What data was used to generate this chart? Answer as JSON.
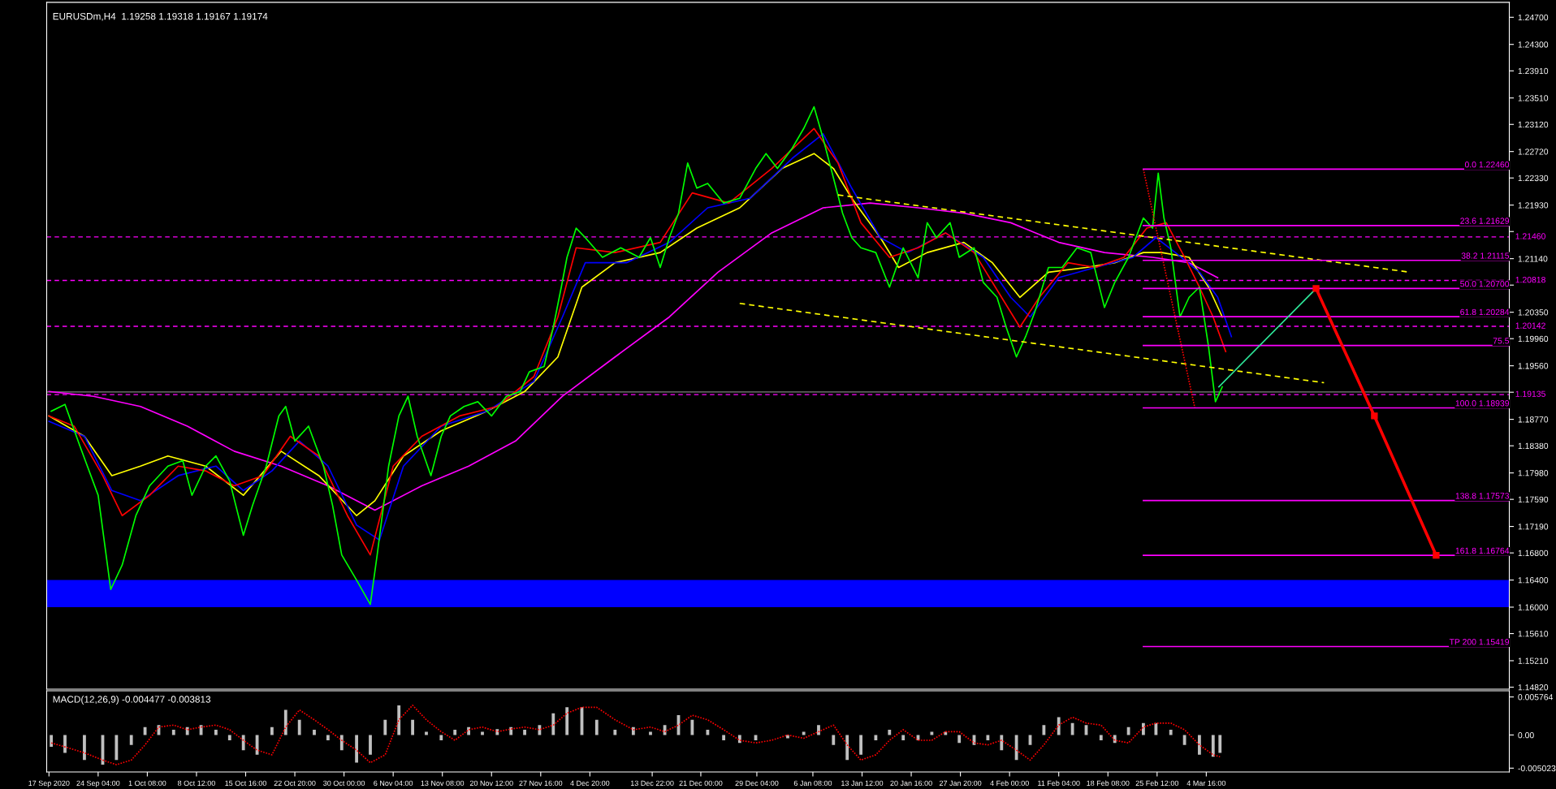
{
  "chart_data": [
    {
      "type": "line",
      "title": "EURUSDm,H4  1.19258 1.19318 1.19167 1.19174",
      "xlim": [
        "2020-09-16T16:00",
        "2021-04-17T20:00"
      ],
      "ylim": [
        1.1479,
        1.2492
      ],
      "yticks": [
        {
          "value": 1.247,
          "label": "1.24700"
        },
        {
          "value": 1.243,
          "label": "1.24300"
        },
        {
          "value": 1.2391,
          "label": "1.23910"
        },
        {
          "value": 1.2351,
          "label": "1.23510"
        },
        {
          "value": 1.2312,
          "label": "1.23120"
        },
        {
          "value": 1.2272,
          "label": "1.22720"
        },
        {
          "value": 1.2233,
          "label": "1.22330"
        },
        {
          "value": 1.2193,
          "label": "1.21930"
        },
        {
          "value": 1.2154,
          "label": null
        },
        {
          "value": 1.2114,
          "label": "1.21140"
        },
        {
          "value": 1.2075,
          "label": null
        },
        {
          "value": 1.2035,
          "label": "1.20350"
        },
        {
          "value": 1.1996,
          "label": "1.19960"
        },
        {
          "value": 1.1956,
          "label": "1.19560"
        },
        {
          "value": 1.1917,
          "label": null
        },
        {
          "value": 1.1877,
          "label": "1.18770"
        },
        {
          "value": 1.1838,
          "label": "1.18380"
        },
        {
          "value": 1.1798,
          "label": "1.17980"
        },
        {
          "value": 1.1759,
          "label": "1.17590"
        },
        {
          "value": 1.1719,
          "label": "1.17190"
        },
        {
          "value": 1.168,
          "label": "1.16800"
        },
        {
          "value": 1.164,
          "label": "1.16400"
        },
        {
          "value": 1.16,
          "label": "1.16000"
        },
        {
          "value": 1.1561,
          "label": "1.15610"
        },
        {
          "value": 1.1521,
          "label": "1.15210"
        },
        {
          "value": 1.1482,
          "label": "1.14820"
        }
      ],
      "tick_labels": "y",
      "grid": false,
      "legend": false,
      "bands": [
        {
          "axis": "y",
          "from": 1.16,
          "to": 1.164,
          "color": "#0000ff"
        }
      ],
      "ref_lines": [
        {
          "axis": "y",
          "value": 1.2146,
          "label": "1.21460",
          "color": "#ff00ff",
          "line_style": "dashed"
        },
        {
          "axis": "y",
          "value": 1.20818,
          "label": "1.20818",
          "color": "#ff00ff",
          "line_style": "dashed"
        },
        {
          "axis": "y",
          "value": 1.20142,
          "label": "1.20142",
          "color": "#ff00ff",
          "line_style": "dashed"
        },
        {
          "axis": "y",
          "value": 1.19135,
          "label": "1.19135",
          "color": "#ff00ff",
          "line_style": "dashed"
        },
        {
          "axis": "y",
          "value": 1.19174,
          "color": "#808080",
          "line_style": "solid"
        }
      ],
      "series": [
        {
          "color": "#ff00ff",
          "x": [
            "2020-09-17T00:00",
            "2020-09-23T12:00",
            "2020-09-30T08:00",
            "2020-10-07T04:00",
            "2020-10-14T00:00",
            "2020-10-20T20:00",
            "2020-10-27T16:00",
            "2020-11-03T12:00",
            "2020-11-10T08:00",
            "2020-11-17T04:00",
            "2020-11-24T00:00",
            "2020-11-30T20:00",
            "2020-12-08T12:00",
            "2020-12-16T10:00",
            "2020-12-23T12:00",
            "2020-12-31T08:00",
            "2021-01-07T20:00",
            "2021-01-14T16:00",
            "2021-01-21T16:00",
            "2021-01-28T08:00",
            "2021-02-04T04:00",
            "2021-02-11T04:00",
            "2021-02-17T20:00",
            "2021-02-24T20:00",
            "2021-03-02T04:00",
            "2021-03-06T08:00"
          ],
          "values": [
            1.1918,
            1.1911,
            1.1896,
            1.1867,
            1.183,
            1.1808,
            1.1779,
            1.1743,
            1.1779,
            1.1808,
            1.1845,
            1.1911,
            1.1969,
            1.2028,
            1.2094,
            1.2152,
            1.2189,
            1.2196,
            1.2189,
            1.2181,
            1.2167,
            1.2138,
            1.2123,
            1.2116,
            1.2108,
            1.2086
          ]
        },
        {
          "color": "#ffff00",
          "x": [
            "2020-09-17T00:00",
            "2020-09-22T04:00",
            "2020-09-26T04:00",
            "2020-09-30T08:00",
            "2020-10-04T08:00",
            "2020-10-09T20:00",
            "2020-10-15T08:00",
            "2020-10-20T20:00",
            "2020-10-26T08:00",
            "2020-10-31T20:00",
            "2020-11-03T12:00",
            "2020-11-07T16:00",
            "2020-11-13T04:00",
            "2020-11-19T20:00",
            "2020-11-25T08:00",
            "2020-11-30T04:00",
            "2020-12-03T16:00",
            "2020-12-08T12:00",
            "2020-12-15T02:00",
            "2020-12-20T10:00",
            "2020-12-26T16:00",
            "2021-01-01T20:00",
            "2021-01-06T12:00",
            "2021-01-09T08:00",
            "2021-01-12T00:00",
            "2021-01-16T04:00",
            "2021-01-18T20:00",
            "2021-01-23T00:00",
            "2021-01-28T08:00",
            "2021-02-01T12:00",
            "2021-02-05T12:00",
            "2021-02-09T16:00",
            "2021-02-15T04:00",
            "2021-02-19T08:00",
            "2021-02-23T12:00",
            "2021-02-26T04:00",
            "2021-03-02T04:00",
            "2021-03-05T00:00",
            "2021-03-07T00:00"
          ],
          "values": [
            1.1882,
            1.1852,
            1.1794,
            1.1808,
            1.1823,
            1.1808,
            1.1765,
            1.183,
            1.1794,
            1.1735,
            1.1757,
            1.1823,
            1.186,
            1.1889,
            1.1918,
            1.1969,
            1.2072,
            1.2108,
            1.2123,
            1.2159,
            1.2189,
            1.2247,
            1.2269,
            1.2247,
            1.2203,
            1.2145,
            1.2101,
            1.2123,
            1.2138,
            1.2108,
            1.2057,
            1.2094,
            1.2101,
            1.2108,
            1.2123,
            1.2123,
            1.2116,
            1.2072,
            1.2028
          ]
        },
        {
          "color": "#0000ff",
          "x": [
            "2020-09-17T00:00",
            "2020-09-22T04:00",
            "2020-09-26T04:00",
            "2020-09-30T08:00",
            "2020-10-05T20:00",
            "2020-10-11T08:00",
            "2020-10-15T08:00",
            "2020-10-19T12:00",
            "2020-10-23T12:00",
            "2020-10-27T16:00",
            "2020-10-31T20:00",
            "2020-11-04T04:00",
            "2020-11-07T16:00",
            "2020-11-13T04:00",
            "2020-11-19T20:00",
            "2020-11-26T16:00",
            "2020-11-30T20:00",
            "2020-12-04T04:00",
            "2020-12-10T04:00",
            "2020-12-16T10:00",
            "2020-12-22T00:00",
            "2020-12-28T04:00",
            "2021-01-03T08:00",
            "2021-01-07T20:00",
            "2021-01-12T00:00",
            "2021-01-16T04:00",
            "2021-01-20T04:00",
            "2021-01-25T16:00",
            "2021-01-31T04:00",
            "2021-02-04T04:00",
            "2021-02-07T00:00",
            "2021-02-11T04:00",
            "2021-02-16T12:00",
            "2021-02-22T00:00",
            "2021-02-25T08:00",
            "2021-02-28T04:00",
            "2021-03-03T16:00",
            "2021-03-06T08:00",
            "2021-03-08T08:00"
          ],
          "values": [
            1.1874,
            1.1852,
            1.1772,
            1.1757,
            1.1794,
            1.1808,
            1.1772,
            1.1801,
            1.1845,
            1.1808,
            1.1721,
            1.1699,
            1.1808,
            1.1867,
            1.1889,
            1.1933,
            1.2028,
            1.2108,
            1.2108,
            1.2138,
            1.2189,
            1.2203,
            1.2262,
            1.2298,
            1.2218,
            1.2145,
            1.2123,
            1.2152,
            1.2116,
            1.2057,
            1.2028,
            1.2086,
            1.2101,
            1.2116,
            1.2145,
            1.2123,
            1.2094,
            1.2057,
            1.1999
          ]
        },
        {
          "color": "#ff0000",
          "x": [
            "2020-09-17T00:00",
            "2020-09-20T16:00",
            "2020-09-24T20:00",
            "2020-09-27T16:00",
            "2020-10-01T16:00",
            "2020-10-05T20:00",
            "2020-10-09T20:00",
            "2020-10-14T00:00",
            "2020-10-18T04:00",
            "2020-10-22T04:00",
            "2020-10-26T08:00",
            "2020-10-30T12:00",
            "2020-11-02T20:00",
            "2020-11-06T04:00",
            "2020-11-10T08:00",
            "2020-11-15T20:00",
            "2020-11-21T08:00",
            "2020-11-26T16:00",
            "2020-11-30T04:00",
            "2020-12-02T20:00",
            "2020-12-08T12:00",
            "2020-12-15T02:00",
            "2020-12-19T18:00",
            "2020-12-25T02:00",
            "2020-12-31T08:00",
            "2021-01-06T12:00",
            "2021-01-10T00:00",
            "2021-01-13T08:00",
            "2021-01-17T12:00",
            "2021-01-21T16:00",
            "2021-01-25T16:00",
            "2021-01-29T20:00",
            "2021-02-02T20:00",
            "2021-02-05T12:00",
            "2021-02-08T08:00",
            "2021-02-12T12:00",
            "2021-02-16T12:00",
            "2021-02-20T16:00",
            "2021-02-24T00:00",
            "2021-02-26T20:00",
            "2021-03-01T12:00",
            "2021-03-03T16:00",
            "2021-03-05T16:00",
            "2021-03-07T12:00"
          ],
          "values": [
            1.1882,
            1.1867,
            1.1794,
            1.1735,
            1.1765,
            1.1808,
            1.1801,
            1.1779,
            1.1794,
            1.1852,
            1.1823,
            1.1735,
            1.1677,
            1.1808,
            1.1852,
            1.1882,
            1.1896,
            1.194,
            1.2028,
            1.213,
            1.2123,
            1.2138,
            1.2211,
            1.2196,
            1.2247,
            1.2306,
            1.2255,
            1.2167,
            1.2116,
            1.213,
            1.2152,
            1.2123,
            1.2057,
            1.2013,
            1.2057,
            1.2108,
            1.2101,
            1.2116,
            1.2159,
            1.2167,
            1.2116,
            1.2072,
            1.2028,
            1.1977
          ]
        },
        {
          "color": "#00ff00",
          "x": [
            "2020-09-17T08:00",
            "2020-09-19T08:00",
            "2020-09-21T12:00",
            "2020-09-24T04:00",
            "2020-09-26T00:00",
            "2020-09-27T16:00",
            "2020-09-29T16:00",
            "2020-10-01T16:00",
            "2020-10-04T08:00",
            "2020-10-06T12:00",
            "2020-10-07T20:00",
            "2020-10-09T20:00",
            "2020-10-11T08:00",
            "2020-10-13T08:00",
            "2020-10-15T08:00",
            "2020-10-16T16:00",
            "2020-10-18T16:00",
            "2020-10-20T12:00",
            "2020-10-21T12:00",
            "2020-10-22T20:00",
            "2020-10-24T20:00",
            "2020-10-27T00:00",
            "2020-10-28T08:00",
            "2020-10-29T16:00",
            "2020-10-31T20:00",
            "2020-11-02T20:00",
            "2020-11-03T20:00",
            "2020-11-05T12:00",
            "2020-11-07T00:00",
            "2020-11-08T08:00",
            "2020-11-09T16:00",
            "2020-11-11T16:00",
            "2020-11-13T04:00",
            "2020-11-14T12:00",
            "2020-11-16T12:00",
            "2020-11-18T12:00",
            "2020-11-20T12:00",
            "2020-11-22T16:00",
            "2020-11-24T16:00",
            "2020-11-26T00:00",
            "2020-11-28T04:00",
            "2020-11-29T12:00",
            "2020-11-30T16:00",
            "2020-12-01T12:00",
            "2020-12-02T20:00",
            "2020-12-04T04:00",
            "2020-12-06T16:00",
            "2020-12-09T08:00",
            "2020-12-12T00:00",
            "2020-12-13T16:00",
            "2020-12-15T02:00",
            "2020-12-16T10:00",
            "2020-12-17T18:00",
            "2020-12-19T02:00",
            "2020-12-20T10:00",
            "2020-12-22T00:00",
            "2020-12-24T08:00",
            "2020-12-26T16:00",
            "2020-12-29T00:00",
            "2020-12-30T12:00",
            "2021-01-01T04:00",
            "2021-01-03T08:00",
            "2021-01-05T00:00",
            "2021-01-06T12:00",
            "2021-01-07T20:00",
            "2021-01-09T08:00",
            "2021-01-10T16:00",
            "2021-01-12T00:00",
            "2021-01-13T08:00",
            "2021-01-15T12:00",
            "2021-01-17T12:00",
            "2021-01-19T12:00",
            "2021-01-21T16:00",
            "2021-01-23T00:00",
            "2021-01-24T08:00",
            "2021-01-26T08:00",
            "2021-01-27T16:00",
            "2021-01-29T20:00",
            "2021-01-31T04:00",
            "2021-02-02T04:00",
            "2021-02-03T12:00",
            "2021-02-05T00:00",
            "2021-02-06T08:00",
            "2021-02-07T16:00",
            "2021-02-09T16:00",
            "2021-02-11T16:00",
            "2021-02-13T20:00",
            "2021-02-15T20:00",
            "2021-02-17T20:00",
            "2021-02-19T08:00",
            "2021-02-21T08:00",
            "2021-02-23T12:00",
            "2021-02-24T20:00",
            "2021-02-25T16:00",
            "2021-02-26T12:00",
            "2021-02-27T12:00",
            "2021-02-28T20:00",
            "2021-03-02T04:00",
            "2021-03-03T16:00",
            "2021-03-05T00:00",
            "2021-03-06T00:00",
            "2021-03-07T00:00"
          ],
          "values": [
            1.1889,
            1.1899,
            1.1838,
            1.1765,
            1.1626,
            1.1662,
            1.1735,
            1.1779,
            1.1808,
            1.1816,
            1.1765,
            1.1808,
            1.1823,
            1.1786,
            1.1706,
            1.175,
            1.1808,
            1.1882,
            1.1896,
            1.1845,
            1.1867,
            1.1808,
            1.175,
            1.1677,
            1.164,
            1.1604,
            1.1677,
            1.1808,
            1.1882,
            1.1911,
            1.1852,
            1.1794,
            1.1852,
            1.1882,
            1.1896,
            1.1903,
            1.1882,
            1.1911,
            1.1918,
            1.1947,
            1.1955,
            1.2013,
            1.2072,
            1.2116,
            1.2159,
            1.2145,
            1.2116,
            1.213,
            1.2116,
            1.2145,
            1.2101,
            1.2145,
            1.2181,
            1.2255,
            1.2218,
            1.2225,
            1.2196,
            1.2203,
            1.2247,
            1.2269,
            1.2247,
            1.2277,
            1.2306,
            1.2338,
            1.2291,
            1.2233,
            1.2181,
            1.2145,
            1.213,
            1.2123,
            1.2072,
            1.213,
            1.2086,
            1.2167,
            1.2145,
            1.2167,
            1.2116,
            1.213,
            1.2079,
            1.2057,
            1.2013,
            1.1969,
            1.1999,
            1.2035,
            1.2101,
            1.2101,
            1.213,
            1.2123,
            1.2042,
            1.2079,
            1.2116,
            1.2174,
            1.2159,
            1.224,
            1.2174,
            1.213,
            1.2028,
            1.2057,
            1.2072,
            1.1984,
            1.1903,
            1.1925
          ]
        },
        {
          "color": "#ffff00",
          "line_style": "dashed",
          "x": [
            "2021-01-10T00:00",
            "2021-04-03T08:00"
          ],
          "values": [
            1.2208,
            1.2094
          ]
        },
        {
          "color": "#ffff00",
          "line_style": "dashed",
          "x": [
            "2020-12-26T16:00",
            "2021-03-21T20:00"
          ],
          "values": [
            1.2048,
            1.1931
          ]
        },
        {
          "color": "#ff0000",
          "line_style": "dotted",
          "x": [
            "2021-02-23T12:00",
            "2021-02-27T04:00",
            "2021-03-03T00:00"
          ],
          "values": [
            1.2246,
            1.2073,
            1.1894
          ]
        },
        {
          "name": "0.0 1.22460",
          "color": "#ff00ff",
          "x": [
            "2021-02-23T12:00",
            "2021-04-17T20:00"
          ],
          "values": [
            1.2246,
            1.2246
          ]
        },
        {
          "name": "23.6 1.21629",
          "color": "#ff00ff",
          "x": [
            "2021-02-23T12:00",
            "2021-04-17T20:00"
          ],
          "values": [
            1.21629,
            1.21629
          ]
        },
        {
          "name": "38.2 1.21115",
          "color": "#ff00ff",
          "x": [
            "2021-02-23T12:00",
            "2021-04-17T20:00"
          ],
          "values": [
            1.21115,
            1.21115
          ]
        },
        {
          "name": "50.0 1.20700",
          "color": "#ff00ff",
          "x": [
            "2021-02-23T12:00",
            "2021-04-17T20:00"
          ],
          "values": [
            1.207,
            1.207
          ]
        },
        {
          "name": "61.8 1.20284",
          "color": "#ff00ff",
          "x": [
            "2021-02-23T12:00",
            "2021-04-17T20:00"
          ],
          "values": [
            1.20284,
            1.20284
          ]
        },
        {
          "name": "75.5",
          "color": "#ff00ff",
          "x": [
            "2021-02-23T12:00",
            "2021-04-17T20:00"
          ],
          "values": [
            1.1986,
            1.1986
          ]
        },
        {
          "name": "100.0 1.18939",
          "color": "#ff00ff",
          "x": [
            "2021-02-23T12:00",
            "2021-04-17T20:00"
          ],
          "values": [
            1.18939,
            1.18939
          ]
        },
        {
          "name": "138.8 1.17573",
          "color": "#ff00ff",
          "x": [
            "2021-02-23T12:00",
            "2021-04-17T20:00"
          ],
          "values": [
            1.17573,
            1.17573
          ]
        },
        {
          "name": "161.8 1.16764",
          "color": "#ff00ff",
          "x": [
            "2021-02-23T12:00",
            "2021-04-17T20:00"
          ],
          "values": [
            1.16764,
            1.16764
          ]
        },
        {
          "name": "TP 200 1.15419",
          "color": "#ff00ff",
          "x": [
            "2021-02-23T12:00",
            "2021-04-17T20:00"
          ],
          "values": [
            1.15419,
            1.15419
          ]
        },
        {
          "color": "#2ee89a",
          "x": [
            "2021-03-06T12:00",
            "2021-03-20T16:00"
          ],
          "values": [
            1.1925,
            1.207
          ]
        },
        {
          "color": "#ff0000",
          "marker": "square",
          "x": [
            "2021-03-20T16:00",
            "2021-03-29T04:00",
            "2021-04-07T04:00"
          ],
          "values": [
            1.207,
            1.1882,
            1.16764
          ]
        }
      ]
    },
    {
      "type": "bar",
      "title": "MACD(12,26,9) -0.004477 -0.003813",
      "xlim": [
        "2020-09-16T16:00",
        "2021-04-17T20:00"
      ],
      "xticks": [
        {
          "value": "2020-09-17T00:00",
          "label": "17 Sep 2020"
        },
        {
          "value": "2020-09-24T04:00",
          "label": "24 Sep 04:00"
        },
        {
          "value": "2020-10-01T08:00",
          "label": "1 Oct 08:00"
        },
        {
          "value": "2020-10-08T12:00",
          "label": "8 Oct 12:00"
        },
        {
          "value": "2020-10-15T16:00",
          "label": "15 Oct 16:00"
        },
        {
          "value": "2020-10-22T20:00",
          "label": "22 Oct 20:00"
        },
        {
          "value": "2020-10-30T00:00",
          "label": "30 Oct 00:00"
        },
        {
          "value": "2020-11-06T04:00",
          "label": "6 Nov 04:00"
        },
        {
          "value": "2020-11-13T08:00",
          "label": "13 Nov 08:00"
        },
        {
          "value": "2020-11-20T12:00",
          "label": "20 Nov 12:00"
        },
        {
          "value": "2020-11-27T16:00",
          "label": "27 Nov 16:00"
        },
        {
          "value": "2020-12-04T20:00",
          "label": "4 Dec 20:00"
        },
        {
          "value": "2020-12-13T22:00",
          "label": "13 Dec 22:00"
        },
        {
          "value": "2020-12-21T00:00",
          "label": "21 Dec 00:00"
        },
        {
          "value": "2020-12-29T04:00",
          "label": "29 Dec 04:00"
        },
        {
          "value": "2021-01-06T08:00",
          "label": "6 Jan 08:00"
        },
        {
          "value": "2021-01-13T12:00",
          "label": "13 Jan 12:00"
        },
        {
          "value": "2021-01-20T16:00",
          "label": "20 Jan 16:00"
        },
        {
          "value": "2021-01-27T20:00",
          "label": "27 Jan 20:00"
        },
        {
          "value": "2021-02-04T00:00",
          "label": "4 Feb 00:00"
        },
        {
          "value": "2021-02-11T04:00",
          "label": "11 Feb 04:00"
        },
        {
          "value": "2021-02-18T08:00",
          "label": "18 Feb 08:00"
        },
        {
          "value": "2021-02-25T12:00",
          "label": "25 Feb 12:00"
        },
        {
          "value": "2021-03-04T16:00",
          "label": "4 Mar 16:00"
        }
      ],
      "ylim": [
        -0.0056,
        0.0067
      ],
      "yticks": [
        {
          "value": 0.005764,
          "label": "0.005764"
        },
        {
          "value": 0,
          "label": "0.00"
        },
        {
          "value": -0.005023,
          "label": "-0.005023"
        }
      ],
      "grid": false,
      "legend": false,
      "series": [
        {
          "color": "#c0c0c0",
          "x": [
            "2020-09-17T08:00",
            "2020-09-19T08:00",
            "2020-09-22T04:00",
            "2020-09-24T20:00",
            "2020-09-26T20:00",
            "2020-09-29T00:00",
            "2020-10-01T00:00",
            "2020-10-03T00:00",
            "2020-10-05T04:00",
            "2020-10-07T04:00",
            "2020-10-09T04:00",
            "2020-10-11T08:00",
            "2020-10-13T08:00",
            "2020-10-15T08:00",
            "2020-10-17T08:00",
            "2020-10-19T12:00",
            "2020-10-21T12:00",
            "2020-10-23T12:00",
            "2020-10-25T16:00",
            "2020-10-27T16:00",
            "2020-10-29T16:00",
            "2020-10-31T20:00",
            "2020-11-02T20:00",
            "2020-11-05T00:00",
            "2020-11-07T00:00",
            "2020-11-09T00:00",
            "2020-11-11T00:00",
            "2020-11-13T04:00",
            "2020-11-15T04:00",
            "2020-11-17T04:00",
            "2020-11-19T04:00",
            "2020-11-21T08:00",
            "2020-11-23T08:00",
            "2020-11-25T08:00",
            "2020-11-27T12:00",
            "2020-11-29T12:00",
            "2020-12-01T12:00",
            "2020-12-03T16:00",
            "2020-12-05T20:00",
            "2020-12-08T12:00",
            "2020-12-11T04:00",
            "2020-12-13T16:00",
            "2020-12-15T18:00",
            "2020-12-17T18:00",
            "2020-12-19T18:00",
            "2020-12-22T00:00",
            "2020-12-24T08:00",
            "2020-12-26T16:00",
            "2020-12-29T00:00",
            "2020-12-31T08:00",
            "2021-01-02T16:00",
            "2021-01-05T00:00",
            "2021-01-07T04:00",
            "2021-01-09T08:00",
            "2021-01-11T08:00",
            "2021-01-13T08:00",
            "2021-01-15T12:00",
            "2021-01-17T12:00",
            "2021-01-19T12:00",
            "2021-01-21T16:00",
            "2021-01-23T16:00",
            "2021-01-25T16:00",
            "2021-01-27T16:00",
            "2021-01-29T20:00",
            "2021-01-31T20:00",
            "2021-02-02T20:00",
            "2021-02-05T00:00",
            "2021-02-07T00:00",
            "2021-02-09T00:00",
            "2021-02-11T04:00",
            "2021-02-13T04:00",
            "2021-02-15T04:00",
            "2021-02-17T08:00",
            "2021-02-19T08:00",
            "2021-02-21T08:00",
            "2021-02-23T12:00",
            "2021-02-25T08:00",
            "2021-02-27T12:00",
            "2021-03-01T12:00",
            "2021-03-03T16:00",
            "2021-03-05T16:00",
            "2021-03-06T16:00"
          ],
          "values": [
            -0.0018,
            -0.0027,
            -0.0038,
            -0.0045,
            -0.0038,
            -0.0015,
            0.0012,
            0.0015,
            0.0008,
            0.0012,
            0.0015,
            0.0008,
            -0.0008,
            -0.0023,
            -0.003,
            0.0012,
            0.0038,
            0.0023,
            0.0008,
            -0.0008,
            -0.0023,
            -0.0042,
            -0.003,
            0.0023,
            0.0045,
            0.0023,
            0.0005,
            -0.0008,
            0.0008,
            0.0012,
            0.0005,
            0.0009,
            0.0012,
            0.0008,
            0.0015,
            0.0033,
            0.0042,
            0.0042,
            0.0023,
            0.0008,
            0.0012,
            0.0005,
            0.0015,
            0.003,
            0.0023,
            0.0008,
            -0.0008,
            -0.0012,
            -0.0008,
            0.0,
            -0.0005,
            0.0005,
            0.0015,
            -0.0015,
            -0.0038,
            -0.003,
            -0.0008,
            0.0008,
            -0.0008,
            -0.0008,
            0.0005,
            0.0005,
            -0.0012,
            -0.0015,
            -0.0008,
            -0.0023,
            -0.0038,
            -0.0015,
            0.0015,
            0.0027,
            0.0018,
            0.0015,
            -0.0008,
            -0.0012,
            0.0012,
            0.0018,
            0.0018,
            0.0008,
            -0.0015,
            -0.003,
            -0.0033,
            -0.0027
          ]
        },
        {
          "type": "line",
          "color": "#ff0000",
          "line_style": "dotted",
          "x": [
            "2020-09-17T08:00",
            "2020-09-19T08:00",
            "2020-09-22T04:00",
            "2020-09-24T20:00",
            "2020-09-26T20:00",
            "2020-09-29T00:00",
            "2020-10-01T00:00",
            "2020-10-03T00:00",
            "2020-10-05T04:00",
            "2020-10-07T04:00",
            "2020-10-09T04:00",
            "2020-10-11T08:00",
            "2020-10-13T08:00",
            "2020-10-15T08:00",
            "2020-10-17T08:00",
            "2020-10-19T12:00",
            "2020-10-21T12:00",
            "2020-10-23T12:00",
            "2020-10-25T16:00",
            "2020-10-27T16:00",
            "2020-10-29T16:00",
            "2020-10-31T20:00",
            "2020-11-02T20:00",
            "2020-11-05T00:00",
            "2020-11-07T00:00",
            "2020-11-09T00:00",
            "2020-11-11T00:00",
            "2020-11-13T04:00",
            "2020-11-15T04:00",
            "2020-11-17T04:00",
            "2020-11-19T04:00",
            "2020-11-21T08:00",
            "2020-11-23T08:00",
            "2020-11-25T08:00",
            "2020-11-27T12:00",
            "2020-11-29T12:00",
            "2020-12-01T12:00",
            "2020-12-03T16:00",
            "2020-12-05T20:00",
            "2020-12-08T12:00",
            "2020-12-11T04:00",
            "2020-12-13T16:00",
            "2020-12-15T18:00",
            "2020-12-17T18:00",
            "2020-12-19T18:00",
            "2020-12-22T00:00",
            "2020-12-24T08:00",
            "2020-12-26T16:00",
            "2020-12-29T00:00",
            "2020-12-31T08:00",
            "2021-01-02T16:00",
            "2021-01-05T00:00",
            "2021-01-07T04:00",
            "2021-01-09T08:00",
            "2021-01-11T08:00",
            "2021-01-13T08:00",
            "2021-01-15T12:00",
            "2021-01-17T12:00",
            "2021-01-19T12:00",
            "2021-01-21T16:00",
            "2021-01-23T16:00",
            "2021-01-25T16:00",
            "2021-01-27T16:00",
            "2021-01-29T20:00",
            "2021-01-31T20:00",
            "2021-02-02T20:00",
            "2021-02-05T00:00",
            "2021-02-07T00:00",
            "2021-02-09T00:00",
            "2021-02-11T04:00",
            "2021-02-13T04:00",
            "2021-02-15T04:00",
            "2021-02-17T08:00",
            "2021-02-19T08:00",
            "2021-02-21T08:00",
            "2021-02-23T12:00",
            "2021-02-25T08:00",
            "2021-02-27T12:00",
            "2021-03-01T12:00",
            "2021-03-03T16:00",
            "2021-03-05T16:00",
            "2021-03-06T16:00"
          ],
          "values": [
            -0.0012,
            -0.0018,
            -0.0027,
            -0.0038,
            -0.0045,
            -0.0038,
            -0.0015,
            0.0012,
            0.0015,
            0.0008,
            0.0012,
            0.0015,
            0.0008,
            -0.0008,
            -0.0023,
            -0.003,
            0.0012,
            0.0038,
            0.0023,
            0.0008,
            -0.0008,
            -0.0023,
            -0.0042,
            -0.003,
            0.0023,
            0.0045,
            0.0023,
            0.0005,
            -0.0008,
            0.0008,
            0.0012,
            0.0005,
            0.0009,
            0.0012,
            0.0008,
            0.0015,
            0.0033,
            0.0042,
            0.0042,
            0.0023,
            0.0008,
            0.0012,
            0.0005,
            0.0015,
            0.003,
            0.0023,
            0.0008,
            -0.0008,
            -0.0012,
            -0.0008,
            0.0,
            -0.0005,
            0.0005,
            0.0015,
            -0.0015,
            -0.0038,
            -0.003,
            -0.0008,
            0.0008,
            -0.0008,
            -0.0008,
            0.0005,
            0.0005,
            -0.0012,
            -0.0015,
            -0.0008,
            -0.0023,
            -0.0038,
            -0.0015,
            0.0015,
            0.0027,
            0.0018,
            0.0015,
            -0.0008,
            -0.0012,
            0.0012,
            0.0018,
            0.0018,
            0.0008,
            -0.0015,
            -0.003,
            -0.0033
          ]
        }
      ]
    }
  ]
}
